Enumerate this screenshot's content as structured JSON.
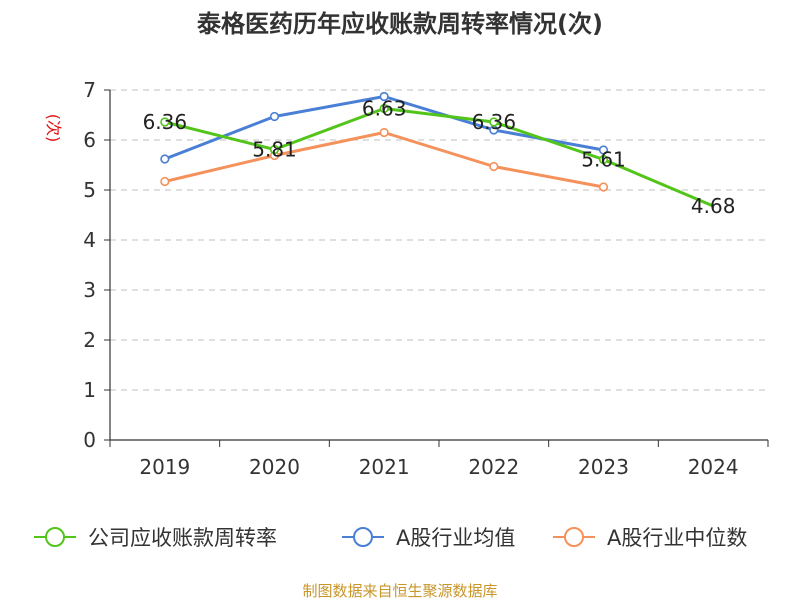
{
  "chart_data": {
    "type": "line",
    "title": "泰格医药历年应收账款周转率情况(次)",
    "ylabel": "(次)",
    "xlabel": "",
    "ylim": [
      0,
      7
    ],
    "yticks": [
      "0",
      "1",
      "2",
      "3",
      "4",
      "5",
      "6",
      "7"
    ],
    "categories": [
      "2019",
      "2020",
      "2021",
      "2022",
      "2023",
      "2024"
    ],
    "grid": true,
    "legend_position": "bottom",
    "series": [
      {
        "name": "公司应收账款周转率",
        "color": "#52c41a",
        "values": [
          6.36,
          5.81,
          6.63,
          6.36,
          5.61,
          4.68
        ],
        "labels": [
          "6.36",
          "5.81",
          "6.63",
          "6.36",
          "5.61",
          "4.68"
        ]
      },
      {
        "name": "A股行业均值",
        "color": "#4a7fd6",
        "values": [
          5.62,
          6.47,
          6.87,
          6.2,
          5.8,
          null
        ],
        "labels": []
      },
      {
        "name": "A股行业中位数",
        "color": "#f5915a",
        "values": [
          5.17,
          5.69,
          6.15,
          5.47,
          5.06,
          null
        ],
        "labels": []
      }
    ],
    "source": "制图数据来自恒生聚源数据库"
  }
}
